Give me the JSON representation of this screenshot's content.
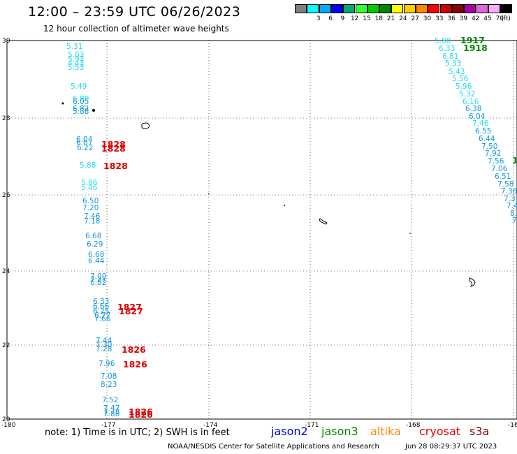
{
  "header": {
    "title": "12:00 – 23:59 UTC 06/26/2023",
    "subtitle": "12 hour collection of altimeter wave heights"
  },
  "legend": {
    "unit": "(ft)",
    "swatches": [
      {
        "color": "#808080",
        "label": ""
      },
      {
        "color": "#00ffff",
        "label": "3"
      },
      {
        "color": "#00aaff",
        "label": "6"
      },
      {
        "color": "#0000ff",
        "label": "9"
      },
      {
        "color": "#00aa77",
        "label": "12"
      },
      {
        "color": "#33ff33",
        "label": "15"
      },
      {
        "color": "#00cc00",
        "label": "18"
      },
      {
        "color": "#008800",
        "label": "21"
      },
      {
        "color": "#ffff00",
        "label": "24"
      },
      {
        "color": "#ffcc00",
        "label": "27"
      },
      {
        "color": "#ff8800",
        "label": "30"
      },
      {
        "color": "#ff0000",
        "label": "33"
      },
      {
        "color": "#cc0000",
        "label": "36"
      },
      {
        "color": "#880000",
        "label": "39"
      },
      {
        "color": "#aa00aa",
        "label": "42"
      },
      {
        "color": "#dd66dd",
        "label": "45"
      },
      {
        "color": "#ffaaff",
        "label": "70"
      },
      {
        "color": "#000000",
        "label": ""
      }
    ]
  },
  "axes": {
    "lat_labels": [
      "30",
      "28",
      "26",
      "24",
      "22",
      "20"
    ],
    "lon_labels": [
      "-180",
      "-177",
      "-174",
      "-171",
      "-168",
      "-16"
    ]
  },
  "colors": {
    "cyan": "#22ddee",
    "blue": "#1199dd",
    "green": "#008800",
    "red": "#dd0000"
  },
  "observations": {
    "track_west": [
      "5.31",
      "5.03",
      "5.93",
      "4.43",
      "5.53",
      "5.49",
      "6.80",
      "6.05",
      "6.82",
      "5.88",
      "6.04",
      "6.07",
      "6.22",
      "5.88",
      "5.86",
      "5.46",
      "6.50",
      "7.20",
      "7.46",
      "7.18",
      "6.68",
      "6.29",
      "6.68",
      "6.44",
      "7.00",
      "7.27",
      "6.82",
      "6.33",
      "6.66",
      "6.25",
      "6.77",
      "7.66",
      "7.44",
      "7.30",
      "7.28",
      "7.96",
      "7.08",
      "8.23",
      "7.52",
      "7.47",
      "7.78",
      "7.88"
    ],
    "track_east": [
      "5.80",
      "6.33",
      "6.81",
      "5.33",
      "5.43",
      "5.56",
      "5.96",
      "5.32",
      "6.16",
      "6.38",
      "6.04",
      "7.46",
      "6.55",
      "6.44",
      "7.50",
      "7.92",
      "7.56",
      "7.06",
      "6.51",
      "7.58",
      "7.36",
      "7.3",
      "7.4",
      "8.",
      "7"
    ],
    "times_red": [
      "1828",
      "1828",
      "1828",
      "1827",
      "1827",
      "1826",
      "1826",
      "1826",
      "1826"
    ],
    "times_green": [
      "1917",
      "1918",
      "1"
    ]
  },
  "footer": {
    "note": "note:  1) Time is in UTC;  2) SWH is in feet",
    "satellites": [
      {
        "name": "jason2",
        "color": "#0000dd"
      },
      {
        "name": "jason3",
        "color": "#008800"
      },
      {
        "name": "altika",
        "color": "#ff8800"
      },
      {
        "name": "cryosat",
        "color": "#dd0000"
      },
      {
        "name": "s3a",
        "color": "#880000"
      }
    ],
    "credit": "NOAA/NESDIS Center for Satellite Applications and Research",
    "timestamp": "Jun 28 08:29:37 UTC 2023"
  }
}
